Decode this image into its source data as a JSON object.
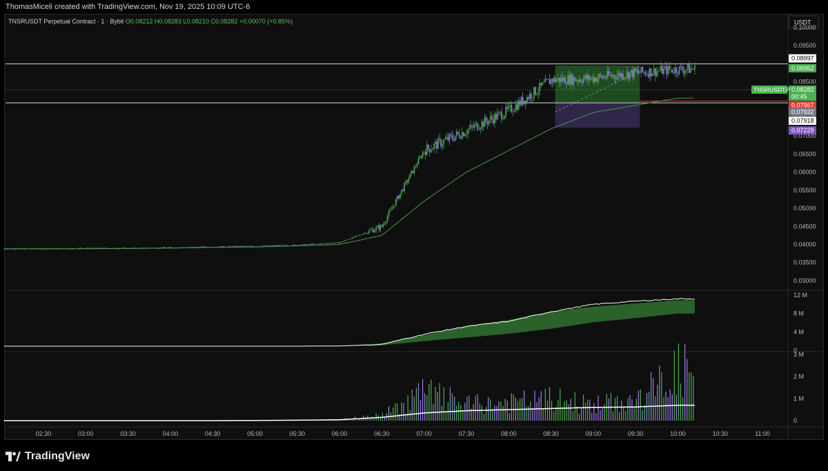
{
  "header": {
    "credit": "ThomasMiceli created with TradingView.com, Nov 19, 2025 10:09 UTC-6"
  },
  "footer": {
    "brand": "TradingView"
  },
  "symbol_line": {
    "title": "TNSRUSDT Perpetual Contract · 1 · Bybit",
    "o": "O0.08212",
    "h": "H0.08283",
    "l": "L0.08210",
    "c": "C0.08282",
    "chg": "+0.00070 (+0.85%)"
  },
  "currency_button": "USDT",
  "colors": {
    "background": "#0f0f0f",
    "up": "#4caf50",
    "down": "#9c7cf0",
    "ema": "#4a9a4a",
    "red_line": "#e53935",
    "box_green": "#2e7d32",
    "box_purple": "#4a3b7a"
  },
  "chart_data": [
    {
      "type": "line",
      "title": "",
      "description_panel": "price",
      "x": [
        "02:30",
        "03:00",
        "03:30",
        "04:00",
        "04:30",
        "05:00",
        "05:30",
        "06:00",
        "06:30",
        "07:00",
        "07:30",
        "08:00",
        "08:30",
        "09:00",
        "09:30",
        "10:00",
        "10:30",
        "11:00"
      ],
      "series": [
        {
          "values": [
            0.0388,
            0.0389,
            0.0389,
            0.0391,
            0.0393,
            0.0395,
            0.0398,
            0.0405,
            0.045,
            0.066,
            0.0715,
            0.077,
            0.0855,
            0.086,
            0.0875,
            0.0885,
            null,
            null
          ]
        },
        {
          "values": [
            0.0388,
            0.0388,
            0.0389,
            0.039,
            0.0392,
            0.0393,
            0.0396,
            0.04,
            0.0425,
            0.052,
            0.06,
            0.066,
            0.072,
            0.0765,
            0.0785,
            0.0805,
            null,
            null
          ]
        }
      ],
      "candles": [
        {
          "t": "06:00",
          "o": 0.0404,
          "h": 0.0412,
          "l": 0.04,
          "c": 0.0408
        },
        {
          "t": "06:30",
          "o": 0.043,
          "h": 0.0462,
          "l": 0.0425,
          "c": 0.0455
        },
        {
          "t": "07:00",
          "o": 0.064,
          "h": 0.07,
          "l": 0.0615,
          "c": 0.068
        },
        {
          "t": "07:30",
          "o": 0.07,
          "h": 0.0725,
          "l": 0.069,
          "c": 0.0712
        },
        {
          "t": "08:00",
          "o": 0.073,
          "h": 0.0775,
          "l": 0.0715,
          "c": 0.0768
        },
        {
          "t": "08:30",
          "o": 0.081,
          "h": 0.088,
          "l": 0.079,
          "c": 0.086
        },
        {
          "t": "09:00",
          "o": 0.0855,
          "h": 0.087,
          "l": 0.0835,
          "c": 0.085
        },
        {
          "t": "09:30",
          "o": 0.088,
          "h": 0.0935,
          "l": 0.086,
          "c": 0.0895
        },
        {
          "t": "10:00",
          "o": 0.087,
          "h": 0.089,
          "l": 0.0795,
          "c": 0.0828
        }
      ],
      "ylim": [
        0.0275,
        0.1
      ],
      "yticks": [
        "0.10000",
        "0.09500",
        "0.08500",
        "0.07500",
        "0.07000",
        "0.06500",
        "0.06000",
        "0.05500",
        "0.05000",
        "0.04500",
        "0.04000",
        "0.03500",
        "0.03000"
      ],
      "price_labels": [
        {
          "text": "0.08997",
          "value": 0.08997,
          "style": "white"
        },
        {
          "text": "0.08952",
          "value": 0.08952,
          "style": "green"
        },
        {
          "text": "0.08282",
          "value": 0.08282,
          "style": "green-last",
          "sub": "00:45",
          "tag": "TNSRUSDT.P"
        },
        {
          "text": "0.07967",
          "value": 0.07967,
          "style": "red"
        },
        {
          "text": "0.07932",
          "value": 0.07932,
          "style": "gray"
        },
        {
          "text": "0.07918",
          "value": 0.07918,
          "style": "white"
        },
        {
          "text": "0.07229",
          "value": 0.07229,
          "style": "purple"
        }
      ],
      "horizontal_lines": [
        0.08997,
        0.07918
      ],
      "red_line": 0.07967,
      "position_box": {
        "start": "08:33",
        "end": "09:33",
        "entry": 0.07932,
        "target": 0.08952,
        "stop": 0.07229
      },
      "grid": false
    },
    {
      "type": "area",
      "description_panel": "cumulative",
      "x": [
        "02:30",
        "03:00",
        "03:30",
        "04:00",
        "04:30",
        "05:00",
        "05:30",
        "06:00",
        "06:30",
        "07:00",
        "07:30",
        "08:00",
        "08:30",
        "09:00",
        "09:30",
        "10:00"
      ],
      "series": [
        {
          "values": [
            0.9,
            0.9,
            0.9,
            0.9,
            0.9,
            0.9,
            0.9,
            0.95,
            1.3,
            3.5,
            5.2,
            6.3,
            8.4,
            10.0,
            10.7,
            11.2
          ]
        },
        {
          "values": [
            null,
            null,
            null,
            null,
            null,
            null,
            null,
            0.9,
            1.1,
            2.0,
            2.8,
            3.6,
            4.7,
            6.1,
            7.0,
            8.0
          ]
        },
        {
          "values": [
            null,
            null,
            null,
            null,
            null,
            null,
            null,
            0.9,
            1.5,
            3.3,
            5.3,
            6.6,
            8.4,
            9.5,
            10.2,
            10.9
          ]
        }
      ],
      "ylim": [
        0,
        12
      ],
      "yticks": [
        "12 M",
        "8 M",
        "4 M",
        "0"
      ]
    },
    {
      "type": "bar",
      "description_panel": "volume",
      "x": [
        "02:30",
        "03:00",
        "03:30",
        "04:00",
        "04:30",
        "05:00",
        "05:30",
        "06:00",
        "06:30",
        "07:00",
        "07:30",
        "08:00",
        "08:30",
        "09:00",
        "09:30",
        "10:00"
      ],
      "values": [
        0.0,
        0.0,
        0.0,
        0.01,
        0.01,
        0.01,
        0.02,
        0.05,
        0.3,
        1.6,
        0.9,
        1.0,
        1.2,
        0.9,
        1.1,
        2.8
      ],
      "series": [
        {
          "values": [
            0.0,
            0.0,
            0.0,
            0.0,
            0.0,
            0.01,
            0.02,
            0.04,
            0.15,
            0.35,
            0.45,
            0.5,
            0.55,
            0.6,
            0.62,
            0.7
          ]
        }
      ],
      "ylim": [
        0,
        3
      ],
      "yticks": [
        "3 M",
        "2 M",
        "1 M",
        "0"
      ]
    }
  ],
  "time_axis": [
    "02:30",
    "03:00",
    "03:30",
    "04:00",
    "04:30",
    "05:00",
    "05:30",
    "06:00",
    "06:30",
    "07:00",
    "07:30",
    "08:00",
    "08:30",
    "09:00",
    "09:30",
    "10:00",
    "10:30",
    "11:00"
  ]
}
